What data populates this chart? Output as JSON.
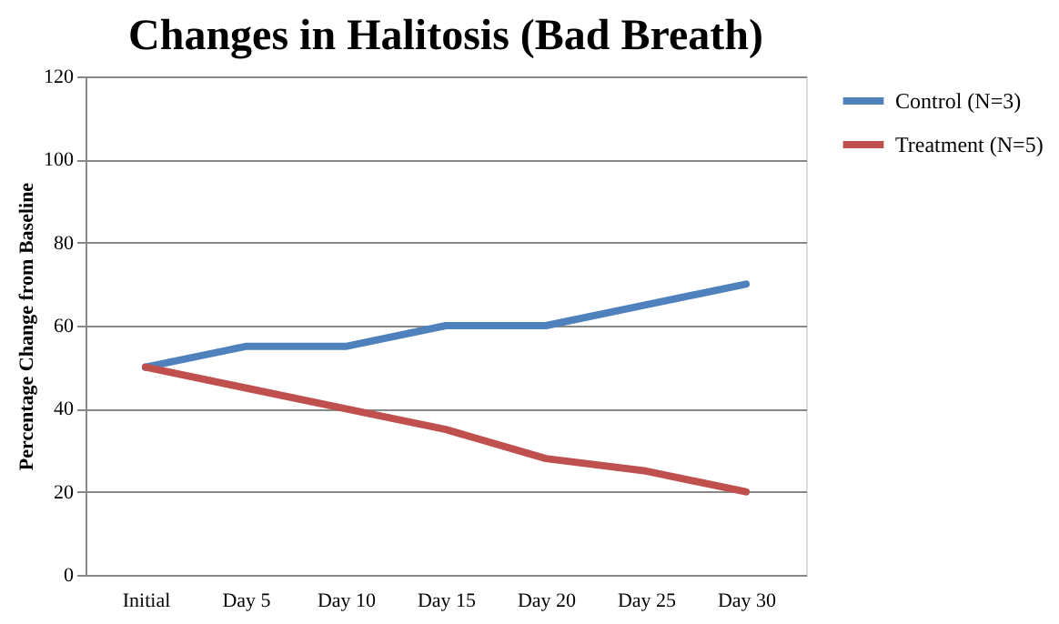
{
  "chart_data": {
    "type": "line",
    "title": "Changes in Halitosis (Bad Breath)",
    "ylabel": "Percentage Change from Baseline",
    "categories": [
      "Initial",
      "Day 5",
      "Day 10",
      "Day 15",
      "Day 20",
      "Day 25",
      "Day 30"
    ],
    "series": [
      {
        "name": "Control (N=3)",
        "color": "#4f81bd",
        "values": [
          50,
          55,
          55,
          60,
          60,
          65,
          70
        ]
      },
      {
        "name": "Treatment (N=5)",
        "color": "#c0504d",
        "values": [
          50,
          45,
          40,
          35,
          28,
          25,
          20
        ]
      }
    ],
    "ylim": [
      0,
      120
    ],
    "yticks": [
      0,
      20,
      40,
      60,
      80,
      100,
      120
    ],
    "grid": "y",
    "legend": "right",
    "marker": "none",
    "line_style": "solid"
  }
}
